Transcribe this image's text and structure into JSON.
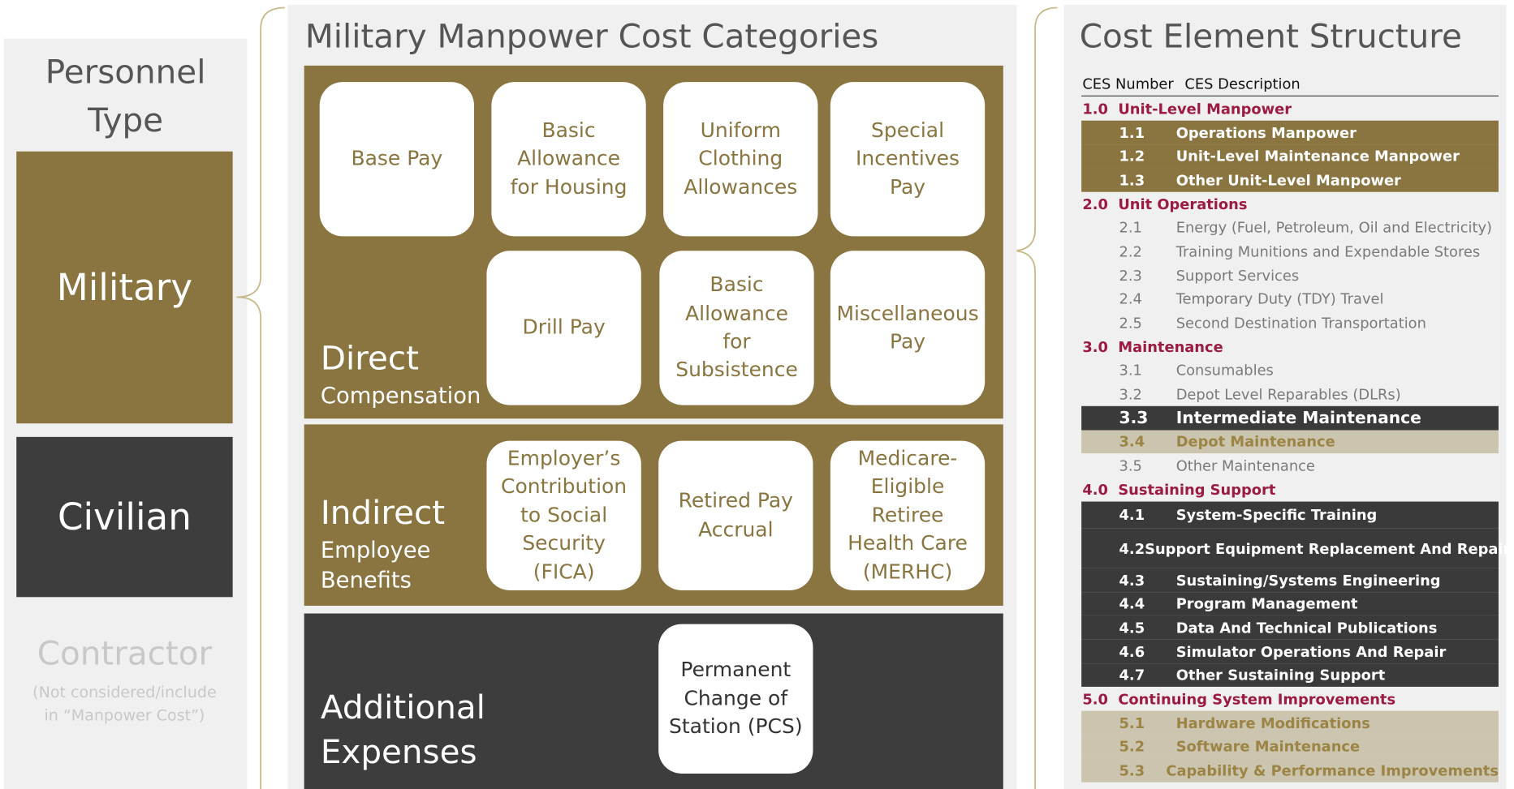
{
  "personnel": {
    "title": "Personnel Type",
    "types": [
      "Military",
      "Civilian",
      "Contractor"
    ],
    "contractor_note": "(Not considered/include in “Manpower Cost”)"
  },
  "categories": {
    "title": "Military Manpower Cost Categories",
    "groups": [
      {
        "heading": "Direct",
        "subheading": "Compensation",
        "items": [
          "Base Pay",
          "Basic Allowance for Housing",
          "Uniform Clothing Allowances",
          "Special Incentives Pay",
          "Drill Pay",
          "Basic Allowance for Subsistence",
          "Miscellaneous Pay"
        ]
      },
      {
        "heading": "Indirect",
        "subheading": "Employee Benefits",
        "items": [
          "Employer’s Contribution to Social Security (FICA)",
          "Retired Pay Accrual",
          "Medicare-Eligible Retiree Health Care (MERHC)"
        ]
      },
      {
        "heading": "Additional Expenses",
        "items": [
          "Permanent Change of Station (PCS)"
        ]
      }
    ]
  },
  "ces": {
    "title": "Cost Element Structure",
    "columns": [
      "CES Number",
      "CES Description"
    ],
    "rows": [
      {
        "number": "1.0",
        "description": "Unit-Level Manpower",
        "style": "section"
      },
      {
        "number": "1.1",
        "description": "Operations Manpower",
        "style": "gold"
      },
      {
        "number": "1.2",
        "description": "Unit-Level Maintenance Manpower",
        "style": "gold"
      },
      {
        "number": "1.3",
        "description": "Other Unit-Level Manpower",
        "style": "gold"
      },
      {
        "number": "2.0",
        "description": "Unit Operations",
        "style": "section"
      },
      {
        "number": "2.1",
        "description": "Energy (Fuel, Petroleum, Oil and Electricity)",
        "style": "plain"
      },
      {
        "number": "2.2",
        "description": "Training Munitions and Expendable Stores",
        "style": "plain"
      },
      {
        "number": "2.3",
        "description": "Support Services",
        "style": "plain"
      },
      {
        "number": "2.4",
        "description": "Temporary Duty (TDY) Travel",
        "style": "plain"
      },
      {
        "number": "2.5",
        "description": "Second Destination Transportation",
        "style": "plain"
      },
      {
        "number": "3.0",
        "description": "Maintenance",
        "style": "section"
      },
      {
        "number": "3.1",
        "description": "Consumables",
        "style": "plain"
      },
      {
        "number": "3.2",
        "description": "Depot Level Reparables (DLRs)",
        "style": "plain"
      },
      {
        "number": "3.3",
        "description": "Intermediate Maintenance",
        "style": "dark-large"
      },
      {
        "number": "3.4",
        "description": "Depot Maintenance",
        "style": "tan"
      },
      {
        "number": "3.5",
        "description": "Other Maintenance",
        "style": "plain"
      },
      {
        "number": "4.0",
        "description": "Sustaining Support",
        "style": "section"
      },
      {
        "number": "4.1",
        "description": "System-Specific Training",
        "style": "dark"
      },
      {
        "number": "4.2",
        "description": "Support Equipment Replacement And Repair",
        "style": "dark"
      },
      {
        "number": "4.3",
        "description": "Sustaining/Systems Engineering",
        "style": "dark"
      },
      {
        "number": "4.4",
        "description": "Program Management",
        "style": "dark"
      },
      {
        "number": "4.5",
        "description": "Data And Technical Publications",
        "style": "dark"
      },
      {
        "number": "4.6",
        "description": "Simulator Operations And Repair",
        "style": "dark"
      },
      {
        "number": "4.7",
        "description": "Other Sustaining Support",
        "style": "dark"
      },
      {
        "number": "5.0",
        "description": "Continuing System Improvements",
        "style": "section"
      },
      {
        "number": "5.1",
        "description": "Hardware Modifications",
        "style": "tan"
      },
      {
        "number": "5.2",
        "description": "Software Maintenance",
        "style": "tan"
      },
      {
        "number": "5.3",
        "description": "Capability & Performance Improvements",
        "style": "tan"
      }
    ]
  }
}
